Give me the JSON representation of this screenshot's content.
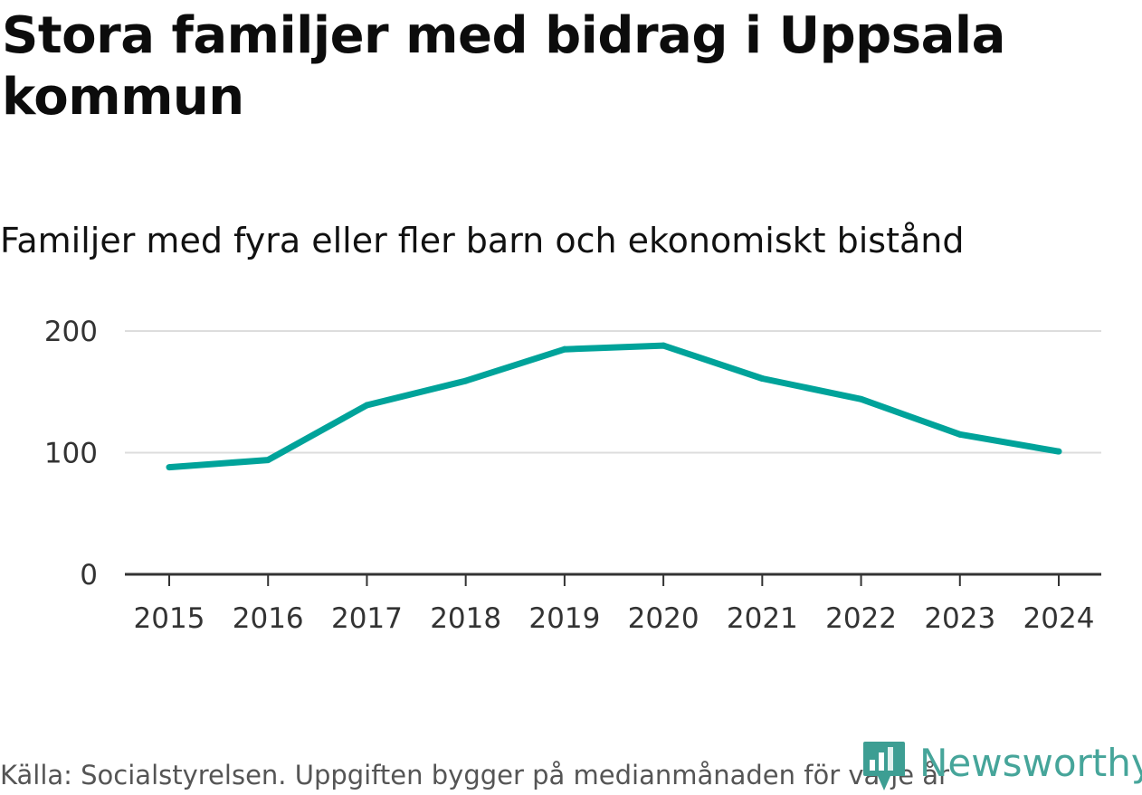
{
  "header": {
    "title": "Stora familjer med bidrag i Uppsala kommun"
  },
  "chart_data": {
    "type": "line",
    "title": "Stora familjer med bidrag i Uppsala kommun",
    "subtitle": "Familjer med fyra eller fler barn och ekonomiskt bistånd",
    "xlabel": "",
    "ylabel": "",
    "categories": [
      "2015",
      "2016",
      "2017",
      "2018",
      "2019",
      "2020",
      "2021",
      "2022",
      "2023",
      "2024"
    ],
    "series": [
      {
        "name": "Familjer med fyra eller fler barn och ekonomiskt bistånd",
        "values": [
          88,
          94,
          139,
          159,
          185,
          188,
          161,
          144,
          115,
          101
        ],
        "color": "#00a39a"
      }
    ],
    "ylim": [
      0,
      200
    ],
    "yticks": [
      0,
      100,
      200
    ],
    "grid": true,
    "legend": "none"
  },
  "footer": {
    "source": "Källa: Socialstyrelsen. Uppgiften bygger på medianmånaden för varje år",
    "brand": "Newsworthy"
  },
  "colors": {
    "line": "#00a39a",
    "grid": "#dddddd",
    "axis": "#333333",
    "brand": "#46a59a",
    "brand_icon": "#3d9e93"
  }
}
